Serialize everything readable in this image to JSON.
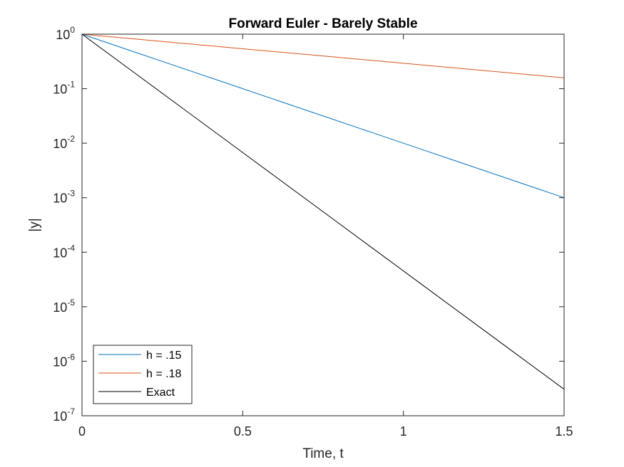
{
  "chart_data": {
    "type": "line",
    "title": "Forward Euler - Barely Stable",
    "xlabel": "Time, t",
    "ylabel": "|y|",
    "xlim": [
      0,
      1.5
    ],
    "ylim": [
      1e-07,
      1
    ],
    "yscale": "log",
    "grid": false,
    "legend_position": "bottom-left",
    "x_ticks": [
      0,
      0.5,
      1,
      1.5
    ],
    "x_tick_labels": [
      "0",
      "0.5",
      "1",
      "1.5"
    ],
    "y_ticks": [
      {
        "value": 1,
        "base": "10",
        "exp": "0"
      },
      {
        "value": 0.1,
        "base": "10",
        "exp": "-1"
      },
      {
        "value": 0.01,
        "base": "10",
        "exp": "-2"
      },
      {
        "value": 0.001,
        "base": "10",
        "exp": "-3"
      },
      {
        "value": 0.0001,
        "base": "10",
        "exp": "-4"
      },
      {
        "value": 1e-05,
        "base": "10",
        "exp": "-5"
      },
      {
        "value": 1e-06,
        "base": "10",
        "exp": "-6"
      },
      {
        "value": 1e-07,
        "base": "10",
        "exp": "-7"
      }
    ],
    "series": [
      {
        "name": "h = .15",
        "color": "#0072bd",
        "x": [
          0,
          0.15,
          0.3,
          0.45,
          0.6,
          0.75,
          0.9,
          1.05,
          1.2,
          1.35,
          1.5
        ],
        "y": [
          1,
          0.5012,
          0.2512,
          0.1259,
          0.0631,
          0.03162,
          0.01585,
          0.007943,
          0.003981,
          0.001995,
          0.001
        ]
      },
      {
        "name": "h = .18",
        "color": "#d95319",
        "x": [
          0,
          0.18,
          0.36,
          0.54,
          0.72,
          0.9,
          1.08,
          1.26,
          1.44,
          1.5
        ],
        "y": [
          1,
          0.8015,
          0.6424,
          0.5149,
          0.4127,
          0.3308,
          0.2651,
          0.2125,
          0.1703,
          0.158
        ]
      },
      {
        "name": "Exact",
        "color": "#000000",
        "x": [
          0,
          0.15,
          0.3,
          0.45,
          0.6,
          0.75,
          0.9,
          1.05,
          1.2,
          1.35,
          1.5
        ],
        "y": [
          1,
          0.2231,
          0.04979,
          0.01111,
          0.002479,
          0.000553,
          0.0001234,
          2.754e-05,
          6.144e-06,
          1.371e-06,
          3.06e-07
        ]
      }
    ]
  }
}
